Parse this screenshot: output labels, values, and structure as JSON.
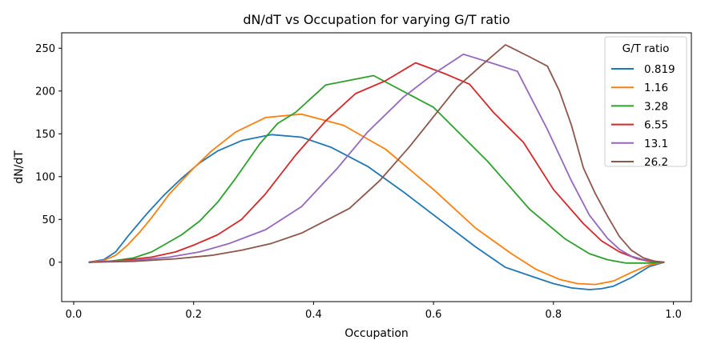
{
  "chart_data": {
    "type": "line",
    "title": "dN/dT vs Occupation for varying G/T ratio",
    "xlabel": "Occupation",
    "ylabel": "dN/dT",
    "xlim": [
      -0.02,
      1.03
    ],
    "ylim": [
      -46,
      268
    ],
    "xticks": [
      0.0,
      0.2,
      0.4,
      0.6,
      0.8,
      1.0
    ],
    "xtick_labels": [
      "0.0",
      "0.2",
      "0.4",
      "0.6",
      "0.8",
      "1.0"
    ],
    "yticks": [
      0,
      50,
      100,
      150,
      200,
      250
    ],
    "ytick_labels": [
      "0",
      "50",
      "100",
      "150",
      "200",
      "250"
    ],
    "grid": false,
    "legend": {
      "title": "G/T ratio",
      "position": "top-right"
    },
    "series": [
      {
        "name": "0.819",
        "color": "#1f77b4",
        "x": [
          0.025,
          0.05,
          0.07,
          0.09,
          0.12,
          0.15,
          0.18,
          0.21,
          0.24,
          0.28,
          0.33,
          0.38,
          0.43,
          0.49,
          0.55,
          0.61,
          0.67,
          0.72,
          0.77,
          0.8,
          0.83,
          0.86,
          0.88,
          0.9,
          0.93,
          0.96,
          0.985
        ],
        "y": [
          0,
          3,
          12,
          30,
          55,
          78,
          98,
          116,
          130,
          142,
          149,
          146,
          134,
          112,
          82,
          50,
          18,
          -6,
          -18,
          -25,
          -30,
          -32,
          -31,
          -28,
          -18,
          -5,
          0
        ]
      },
      {
        "name": "1.16",
        "color": "#ff7f0e",
        "x": [
          0.025,
          0.05,
          0.07,
          0.09,
          0.11,
          0.13,
          0.16,
          0.2,
          0.23,
          0.27,
          0.32,
          0.38,
          0.45,
          0.52,
          0.6,
          0.67,
          0.73,
          0.77,
          0.81,
          0.84,
          0.87,
          0.9,
          0.93,
          0.96,
          0.985
        ],
        "y": [
          0,
          2,
          8,
          20,
          35,
          52,
          80,
          110,
          130,
          152,
          169,
          173,
          160,
          132,
          85,
          40,
          10,
          -8,
          -20,
          -25,
          -26,
          -22,
          -12,
          -3,
          0
        ]
      },
      {
        "name": "3.28",
        "color": "#2ca02c",
        "x": [
          0.025,
          0.06,
          0.1,
          0.13,
          0.15,
          0.18,
          0.21,
          0.24,
          0.27,
          0.31,
          0.34,
          0.37,
          0.42,
          0.5,
          0.6,
          0.69,
          0.76,
          0.82,
          0.86,
          0.89,
          0.92,
          0.96,
          0.985
        ],
        "y": [
          0,
          1,
          5,
          12,
          20,
          32,
          48,
          70,
          98,
          138,
          162,
          175,
          207,
          218,
          181,
          118,
          62,
          27,
          10,
          3,
          -1,
          -1,
          0
        ]
      },
      {
        "name": "6.55",
        "color": "#d62728",
        "x": [
          0.025,
          0.08,
          0.13,
          0.17,
          0.2,
          0.24,
          0.28,
          0.32,
          0.37,
          0.42,
          0.47,
          0.52,
          0.57,
          0.62,
          0.66,
          0.7,
          0.75,
          0.8,
          0.85,
          0.88,
          0.91,
          0.94,
          0.96,
          0.985
        ],
        "y": [
          0,
          2,
          6,
          12,
          20,
          32,
          50,
          80,
          125,
          165,
          197,
          212,
          233,
          220,
          208,
          175,
          140,
          85,
          45,
          25,
          12,
          4,
          1,
          0
        ]
      },
      {
        "name": "13.1",
        "color": "#9467bd",
        "x": [
          0.025,
          0.1,
          0.16,
          0.21,
          0.26,
          0.32,
          0.38,
          0.44,
          0.49,
          0.55,
          0.6,
          0.65,
          0.7,
          0.74,
          0.79,
          0.83,
          0.86,
          0.89,
          0.91,
          0.93,
          0.95,
          0.97,
          0.985
        ],
        "y": [
          0,
          2,
          6,
          12,
          22,
          38,
          65,
          110,
          152,
          193,
          220,
          243,
          232,
          223,
          155,
          95,
          55,
          28,
          15,
          7,
          3,
          1,
          0
        ]
      },
      {
        "name": "26.2",
        "color": "#8c564b",
        "x": [
          0.025,
          0.1,
          0.17,
          0.23,
          0.28,
          0.33,
          0.38,
          0.43,
          0.46,
          0.51,
          0.56,
          0.6,
          0.64,
          0.68,
          0.72,
          0.76,
          0.79,
          0.81,
          0.83,
          0.85,
          0.87,
          0.89,
          0.91,
          0.93,
          0.95,
          0.97,
          0.985
        ],
        "y": [
          0,
          1,
          4,
          8,
          14,
          22,
          34,
          52,
          63,
          95,
          135,
          170,
          205,
          230,
          254,
          240,
          229,
          200,
          160,
          110,
          80,
          54,
          30,
          14,
          5,
          1,
          0
        ]
      }
    ]
  }
}
